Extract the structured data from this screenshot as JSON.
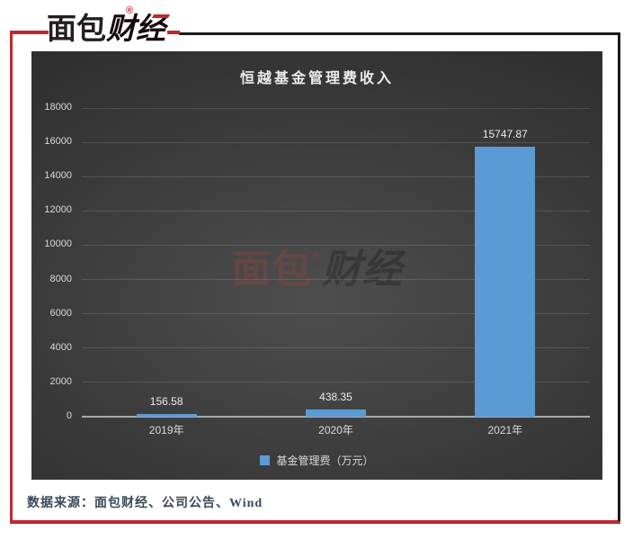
{
  "brand": {
    "logo_part1": "面包",
    "logo_part2": "财经",
    "registered_mark": "®",
    "accent_color": "#C1272D"
  },
  "chart_panel": {
    "title": "恒越基金管理费收入",
    "legend_label": "基金管理费（万元）",
    "watermark_part1": "面包",
    "watermark_part2": "财经",
    "watermark_mark": "®"
  },
  "footer": {
    "source_text": "数据来源：面包财经、公司公告、Wind"
  },
  "chart_data": {
    "type": "bar",
    "title": "恒越基金管理费收入",
    "categories": [
      "2019年",
      "2020年",
      "2021年"
    ],
    "series": [
      {
        "name": "基金管理费（万元）",
        "values": [
          156.58,
          438.35,
          15747.87
        ]
      }
    ],
    "data_labels": [
      "156.58",
      "438.35",
      "15747.87"
    ],
    "ylim": [
      0,
      18000
    ],
    "ytick_step": 2000,
    "yticks": [
      0,
      2000,
      4000,
      6000,
      8000,
      10000,
      12000,
      14000,
      16000,
      18000
    ],
    "grid": true,
    "legend_position": "bottom",
    "bar_color": "#5B9BD5",
    "tick_label_color": "#D9D9D9",
    "plot_background": "dark radial gradient"
  }
}
